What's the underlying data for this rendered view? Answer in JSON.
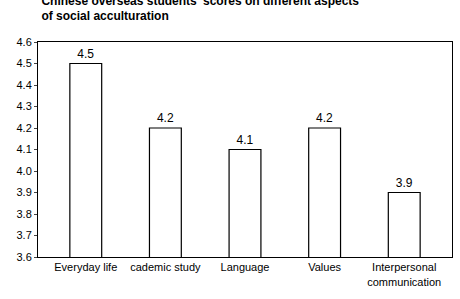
{
  "chart_data": {
    "type": "bar",
    "title": "Chinese overseas students' scores on different aspects of social acculturation",
    "categories": [
      "Everyday life",
      "cademic study",
      "Language",
      "Values",
      "Interpersonal communication"
    ],
    "values": [
      4.5,
      4.2,
      4.1,
      4.2,
      3.9
    ],
    "color": "#ffffff",
    "ylim": [
      3.6,
      4.6
    ],
    "yticks": [
      3.6,
      3.7,
      3.8,
      3.9,
      {
        "value": 4,
        "label": "4.0"
      },
      4.1,
      4.2,
      4.3,
      4.4,
      4.5,
      4.6
    ],
    "grid": false,
    "data_labels": true
  }
}
